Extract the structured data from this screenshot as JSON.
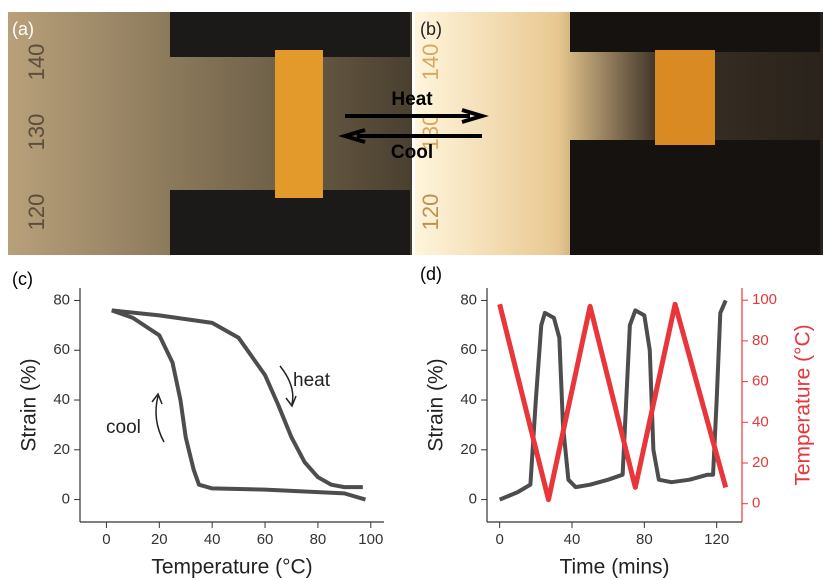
{
  "photos": [
    {
      "label": "(a)",
      "ruler": [
        "140",
        "130",
        "120"
      ]
    },
    {
      "label": "(b)",
      "ruler": [
        "140",
        "130",
        "120"
      ]
    }
  ],
  "arrows": {
    "heat": "Heat",
    "cool": "Cool"
  },
  "chart_data": [
    {
      "type": "line",
      "panel_label": "(c)",
      "xlabel": "Temperature (°C)",
      "ylabel": "Strain (%)",
      "xlim": [
        -10,
        105
      ],
      "ylim": [
        -9,
        85
      ],
      "xticks": [
        0,
        20,
        40,
        60,
        80,
        100
      ],
      "yticks": [
        0,
        20,
        40,
        60,
        80
      ],
      "annotations": [
        "heat",
        "cool"
      ],
      "series": [
        {
          "color": "#4d4d4d",
          "x": [
            2,
            20,
            40,
            50,
            60,
            65,
            70,
            75,
            80,
            85,
            90,
            97
          ],
          "values": [
            76,
            74,
            71,
            65,
            50,
            38,
            25,
            15,
            9,
            6,
            5,
            5
          ]
        },
        {
          "color": "#4d4d4d",
          "x": [
            2,
            10,
            20,
            25,
            28,
            30,
            33,
            35,
            40,
            60,
            80,
            90,
            98
          ],
          "values": [
            76,
            73,
            66,
            55,
            40,
            25,
            12,
            6,
            4.5,
            4,
            3,
            2.5,
            0
          ]
        }
      ]
    },
    {
      "type": "line",
      "panel_label": "(d)",
      "xlabel": "Time (mins)",
      "ylabel": "Strain (%)",
      "y2label": "Temperature (°C)",
      "xlim": [
        -7,
        134
      ],
      "ylim": [
        -9,
        85
      ],
      "y2lim": [
        -9,
        106
      ],
      "xticks": [
        0,
        40,
        80,
        120
      ],
      "yticks": [
        0,
        20,
        40,
        60,
        80
      ],
      "y2ticks": [
        0,
        20,
        40,
        60,
        80,
        100
      ],
      "y2color": "#e8363b",
      "series": [
        {
          "color": "#4d4d4d",
          "x": [
            0,
            10,
            17,
            20,
            23,
            25,
            30,
            33,
            35,
            38,
            42,
            50,
            60,
            68,
            70,
            72,
            75,
            80,
            83,
            85,
            88,
            95,
            105,
            115,
            118,
            120,
            122,
            125
          ],
          "values": [
            0,
            3,
            6,
            40,
            70,
            75,
            73,
            65,
            30,
            8,
            5,
            6,
            8,
            10,
            40,
            70,
            76,
            74,
            60,
            20,
            8,
            7,
            8,
            10,
            10,
            40,
            75,
            80
          ]
        },
        {
          "color": "#e8363b",
          "axis": "y2",
          "x": [
            0,
            27,
            50,
            75,
            97,
            125
          ],
          "values": [
            98,
            2,
            97,
            8,
            98,
            8
          ]
        }
      ]
    }
  ]
}
